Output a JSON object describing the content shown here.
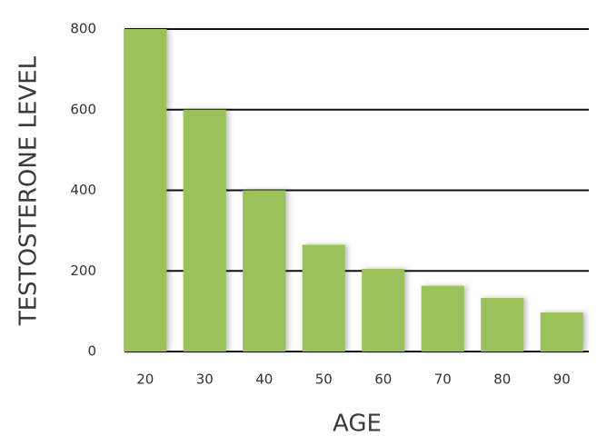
{
  "chart_data": {
    "type": "bar",
    "x_label": "AGE",
    "y_label": "TESTOSTERONE LEVEL",
    "categories": [
      "20",
      "30",
      "40",
      "50",
      "60",
      "70",
      "80",
      "90"
    ],
    "values": [
      800,
      600,
      400,
      265,
      205,
      163,
      133,
      97
    ],
    "color": "#9bc25a",
    "ylim": [
      0,
      800
    ],
    "yticks": [
      0,
      200,
      400,
      600,
      800
    ],
    "grid": true
  }
}
